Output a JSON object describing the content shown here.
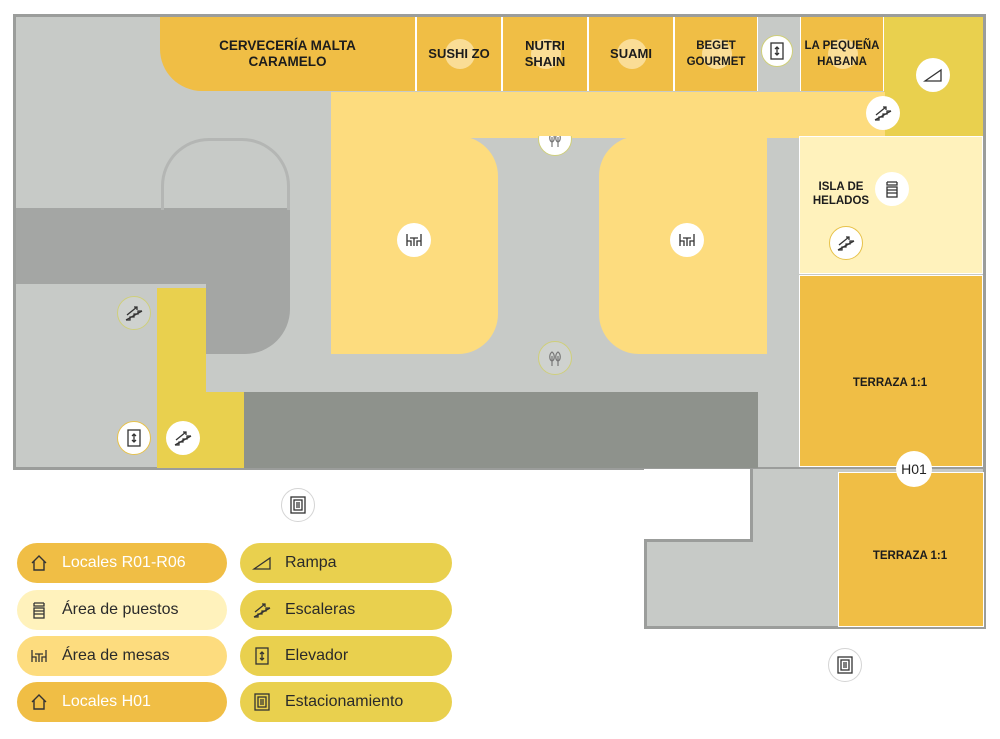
{
  "stores": [
    {
      "id": "cerveceria",
      "label": "CERVECERÍA MALTA\nCARAMELO"
    },
    {
      "id": "sushi",
      "label": "SUSHI ZO"
    },
    {
      "id": "nutri",
      "label": "NUTRI\nSHAIN"
    },
    {
      "id": "suami",
      "label": "SUAMI"
    },
    {
      "id": "beget",
      "label": "BEGET\nGOURMET"
    },
    {
      "id": "pequena",
      "label": "LA PEQUEÑA\nHABANA"
    }
  ],
  "areas": {
    "isla": "ISLA DE\nHELADOS",
    "terraza_top": "TERRAZA 1:1",
    "terraza_bottom": "TERRAZA 1:1",
    "h01": "H01"
  },
  "legend": [
    {
      "id": "locales-r01-r06",
      "label": "Locales R01-R06",
      "icon": "house-icon",
      "color": "#f0be45"
    },
    {
      "id": "area-puestos",
      "label": "Área de puestos",
      "icon": "kiosk-icon",
      "color": "#fff2bc"
    },
    {
      "id": "area-mesas",
      "label": "Área de mesas",
      "icon": "table-icon",
      "color": "#fddc7e"
    },
    {
      "id": "locales-h01",
      "label": "Locales H01",
      "icon": "house-icon",
      "color": "#f0be45"
    },
    {
      "id": "rampa",
      "label": "Rampa",
      "icon": "ramp-icon",
      "color": "#e9d04e"
    },
    {
      "id": "escaleras",
      "label": "Escaleras",
      "icon": "stairs-icon",
      "color": "#e9d04e"
    },
    {
      "id": "elevador",
      "label": "Elevador",
      "icon": "elevator-icon",
      "color": "#e9d04e"
    },
    {
      "id": "estacionamiento",
      "label": "Estacionamiento",
      "icon": "parking-icon",
      "color": "#e9d04e"
    }
  ]
}
